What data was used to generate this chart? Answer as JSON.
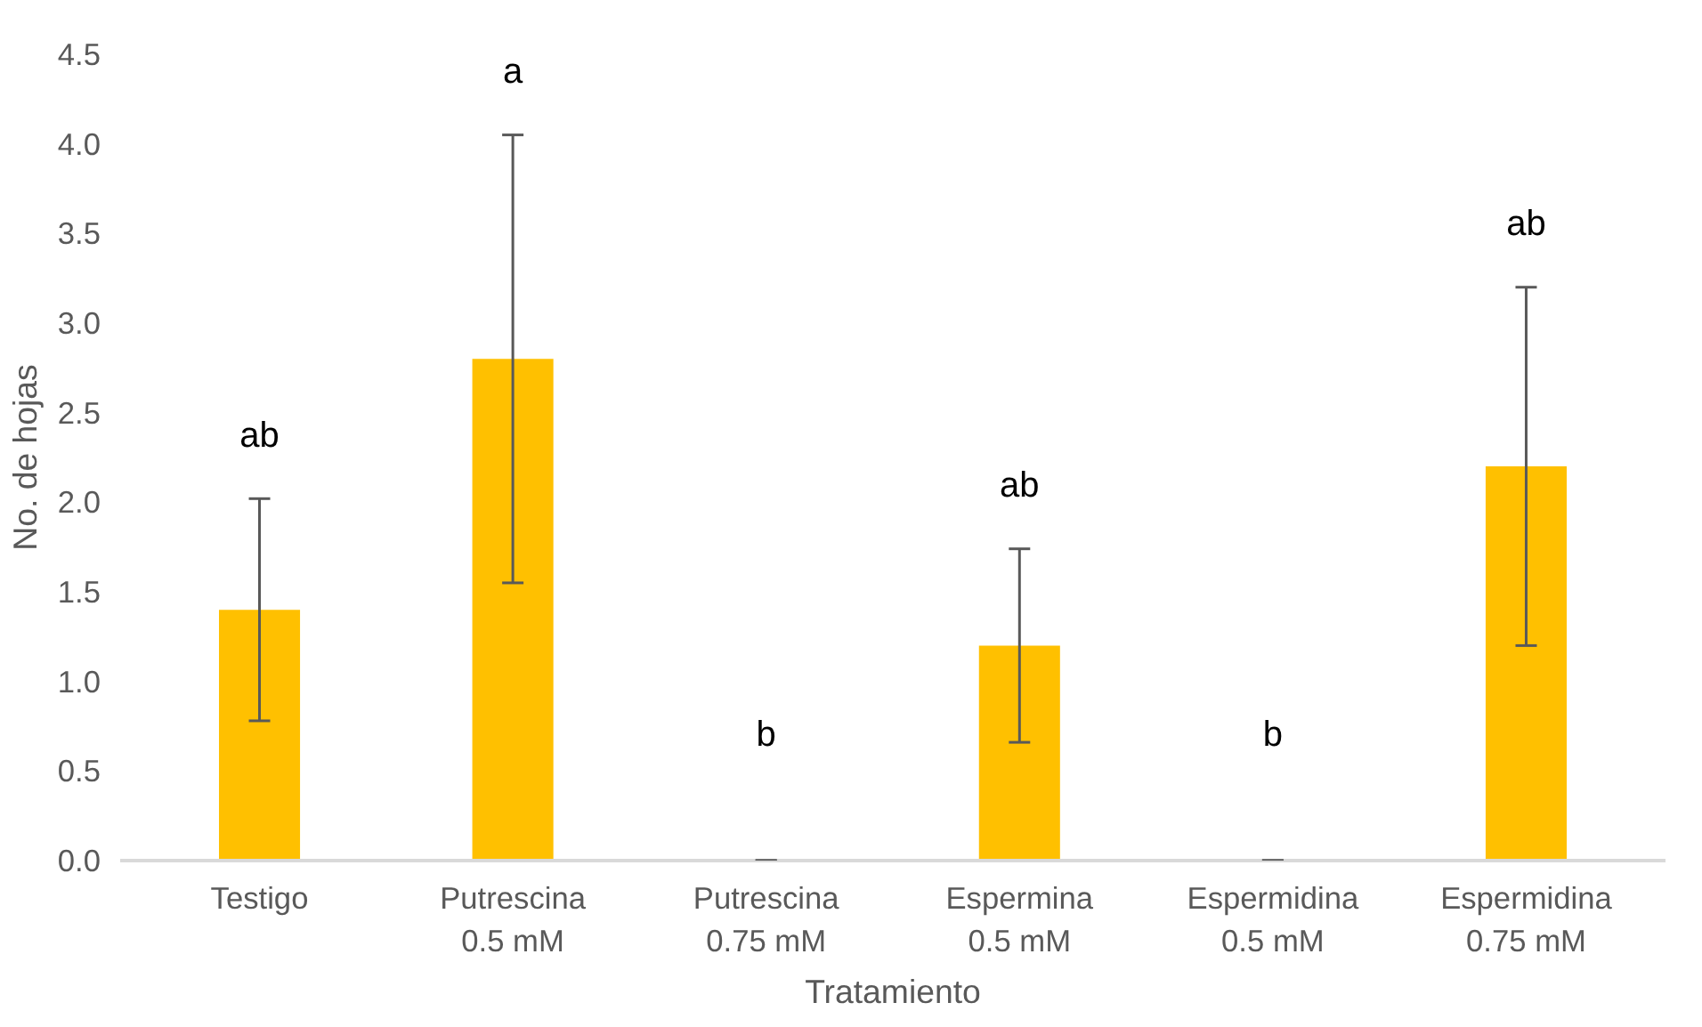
{
  "chart_data": {
    "type": "bar",
    "xlabel": "Tratamiento",
    "ylabel": "No. de hojas",
    "categories": [
      "Testigo",
      "Putrescina\n0.5 mM",
      "Putrescina\n0.75 mM",
      "Espermina\n0.5 mM",
      "Espermidina\n0.5 mM",
      "Espermidina\n0.75 mM"
    ],
    "values": [
      1.4,
      2.8,
      0,
      1.2,
      0,
      2.2
    ],
    "errors": [
      0.62,
      1.25,
      0,
      0.54,
      0,
      1.0
    ],
    "color": "#ffc000",
    "ylim": [
      0,
      4.5
    ],
    "yticks": [
      {
        "value": 0,
        "label": "0.0"
      },
      0.5,
      {
        "value": 1,
        "label": "1.0"
      },
      1.5,
      {
        "value": 2,
        "label": "2.0"
      },
      2.5,
      {
        "value": 3,
        "label": "3.0"
      },
      3.5,
      {
        "value": 4,
        "label": "4.0"
      },
      4.5
    ],
    "grid": false,
    "annotations": [
      "ab",
      "a",
      "b",
      "ab",
      "b",
      "ab"
    ]
  }
}
